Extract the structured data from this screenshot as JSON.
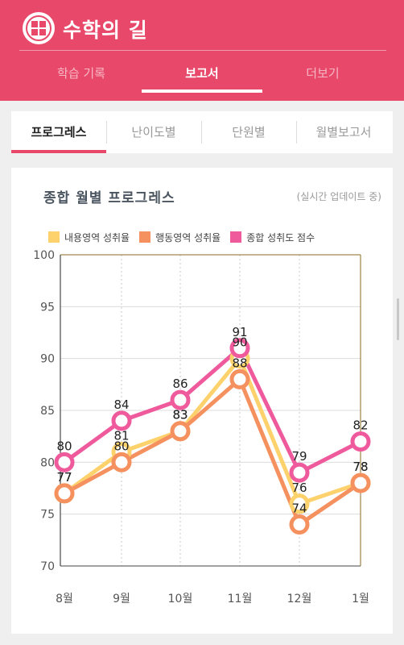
{
  "app": {
    "title": "수학의 길",
    "logo": "school-crest-icon"
  },
  "main_tabs": [
    {
      "label": "학습 기록"
    },
    {
      "label": "보고서"
    },
    {
      "label": "더보기"
    }
  ],
  "main_tab_active": 1,
  "sub_tabs": [
    {
      "label": "프로그레스"
    },
    {
      "label": "난이도별"
    },
    {
      "label": "단원별"
    },
    {
      "label": "월별보고서"
    }
  ],
  "sub_tab_active": 0,
  "colors": {
    "accent": "#e8496a",
    "content": "#fdd26c",
    "behavior": "#f5905f",
    "total": "#ee5a9c"
  },
  "chart_data": {
    "type": "line",
    "title": "종합 월별 프로그레스",
    "note": "(실시간 업데이트 중)",
    "categories": [
      "8월",
      "9월",
      "10월",
      "11월",
      "12월",
      "1월"
    ],
    "ylim": [
      70,
      100
    ],
    "yticks": [
      70,
      75,
      80,
      85,
      90,
      95,
      100
    ],
    "grid": true,
    "legend_position": "top",
    "series": [
      {
        "name": "내용영역 성취율",
        "color": "#fdd26c",
        "values": [
          77,
          81,
          83,
          90,
          76,
          78
        ]
      },
      {
        "name": "행동영역 성취율",
        "color": "#f5905f",
        "values": [
          77,
          80,
          83,
          88,
          74,
          78
        ]
      },
      {
        "name": "종합 성취도 점수",
        "color": "#ee5a9c",
        "values": [
          80,
          84,
          86,
          91,
          79,
          82
        ]
      }
    ]
  }
}
